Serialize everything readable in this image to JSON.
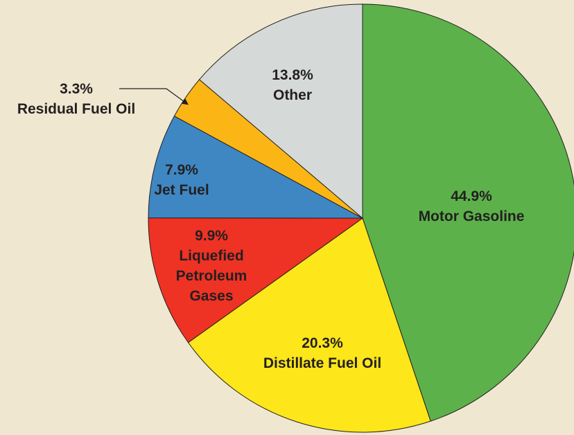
{
  "chart_data": {
    "type": "pie",
    "categories": [
      "Motor Gasoline",
      "Distillate Fuel Oil",
      "Liquefied Petroleum Gases",
      "Jet Fuel",
      "Residual Fuel Oil",
      "Other"
    ],
    "values": [
      44.9,
      20.3,
      9.9,
      7.9,
      3.3,
      13.8
    ],
    "value_labels": [
      "44.9%",
      "20.3%",
      "9.9%",
      "7.9%",
      "3.3%",
      "13.8%"
    ],
    "colors": [
      "#5cb14b",
      "#fde619",
      "#ee3224",
      "#3f87c3",
      "#fbb615",
      "#d5d9d7"
    ]
  }
}
